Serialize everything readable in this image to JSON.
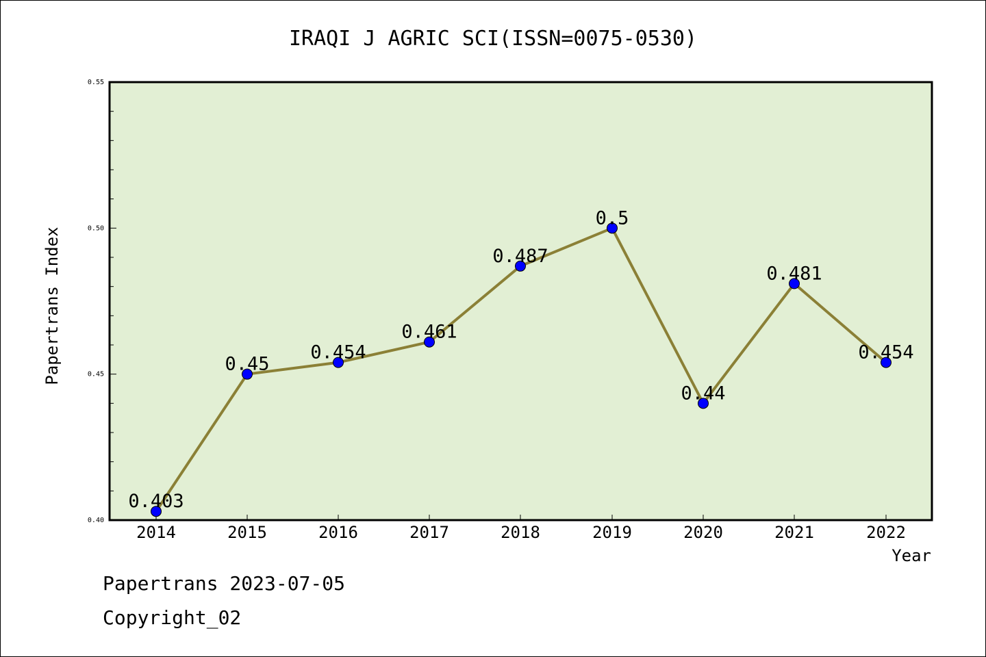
{
  "chart_data": {
    "type": "line",
    "title": "IRAQI J AGRIC SCI(ISSN=0075-0530)",
    "xlabel": "Year",
    "ylabel": "Papertrans Index",
    "categories": [
      "2014",
      "2015",
      "2016",
      "2017",
      "2018",
      "2019",
      "2020",
      "2021",
      "2022"
    ],
    "series": [
      {
        "name": "Papertrans Index",
        "values": [
          0.403,
          0.45,
          0.454,
          0.461,
          0.487,
          0.5,
          0.44,
          0.481,
          0.454
        ],
        "labels": [
          "0.403",
          "0.45",
          "0.454",
          "0.461",
          "0.487",
          "0.5",
          "0.44",
          "0.481",
          "0.454"
        ]
      }
    ],
    "ylim": [
      0.4,
      0.55
    ],
    "yticks": [
      "0.40",
      "0.45",
      "0.50",
      "0.55"
    ],
    "grid": false,
    "colors": {
      "plot_background": "#e2efd4",
      "line": "#8b8036",
      "marker": "#0000ff",
      "axes": "#000000"
    }
  },
  "footer": {
    "date_line": "Papertrans 2023-07-05",
    "copyright": "Copyright_02"
  }
}
